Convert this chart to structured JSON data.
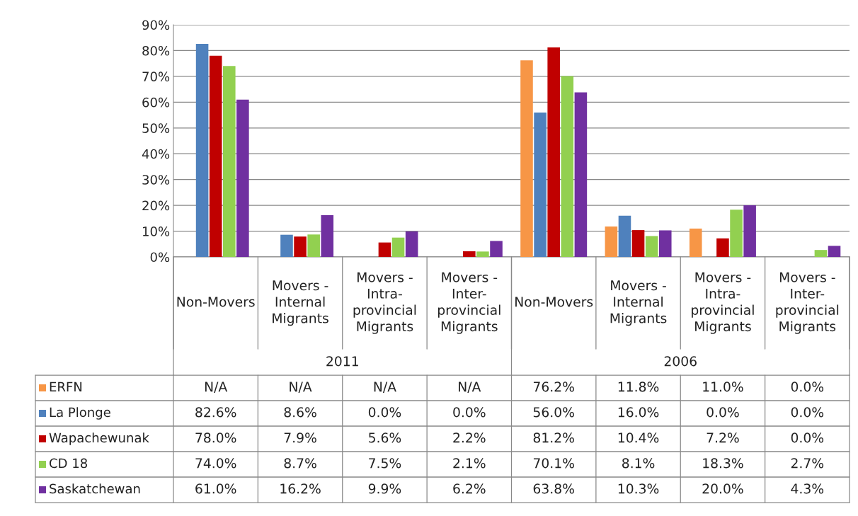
{
  "chart_data": {
    "type": "bar",
    "categories": [
      "Non-Movers",
      "Movers - Internal Migrants",
      "Movers - Intra-provincial Migrants",
      "Movers - Inter-provincial Migrants",
      "Non-Movers",
      "Movers - Internal Migrants",
      "Movers - Intra-provincial Migrants",
      "Movers - Inter-provincial Migrants"
    ],
    "series": [
      {
        "name": "ERFN",
        "color": "#f79646",
        "values": [
          null,
          null,
          null,
          null,
          76.2,
          11.8,
          11.0,
          0.0
        ],
        "value_labels": [
          "N/A",
          "N/A",
          "N/A",
          "N/A",
          "76.2%",
          "11.8%",
          "11.0%",
          "0.0%"
        ]
      },
      {
        "name": "La Plonge",
        "color": "#4f81bd",
        "values": [
          82.6,
          8.6,
          0.0,
          0.0,
          56.0,
          16.0,
          0.0,
          0.0
        ],
        "value_labels": [
          "82.6%",
          "8.6%",
          "0.0%",
          "0.0%",
          "56.0%",
          "16.0%",
          "0.0%",
          "0.0%"
        ]
      },
      {
        "name": "Wapachewunak",
        "color": "#c00000",
        "values": [
          78.0,
          7.9,
          5.6,
          2.2,
          81.2,
          10.4,
          7.2,
          0.0
        ],
        "value_labels": [
          "78.0%",
          "7.9%",
          "5.6%",
          "2.2%",
          "81.2%",
          "10.4%",
          "7.2%",
          "0.0%"
        ]
      },
      {
        "name": "CD 18",
        "color": "#92d050",
        "values": [
          74.0,
          8.7,
          7.5,
          2.1,
          70.1,
          8.1,
          18.3,
          2.7
        ],
        "value_labels": [
          "74.0%",
          "8.7%",
          "7.5%",
          "2.1%",
          "70.1%",
          "8.1%",
          "18.3%",
          "2.7%"
        ]
      },
      {
        "name": "Saskatchewan",
        "color": "#7030a0",
        "values": [
          61.0,
          16.2,
          9.9,
          6.2,
          63.8,
          10.3,
          20.0,
          4.3
        ],
        "value_labels": [
          "61.0%",
          "16.2%",
          "9.9%",
          "6.2%",
          "63.8%",
          "10.3%",
          "20.0%",
          "4.3%"
        ]
      }
    ],
    "annotations": [
      "2011",
      "2006"
    ],
    "ylim": [
      0,
      90
    ],
    "yticks": [
      {
        "value": 0,
        "label": "0%"
      },
      {
        "value": 10,
        "label": "10%"
      },
      {
        "value": 20,
        "label": "20%"
      },
      {
        "value": 30,
        "label": "30%"
      },
      {
        "value": 40,
        "label": "40%"
      },
      {
        "value": 50,
        "label": "50%"
      },
      {
        "value": 60,
        "label": "60%"
      },
      {
        "value": 70,
        "label": "70%"
      },
      {
        "value": 80,
        "label": "80%"
      },
      {
        "value": 90,
        "label": "90%"
      }
    ],
    "grid": "y",
    "legend": "bottom"
  }
}
